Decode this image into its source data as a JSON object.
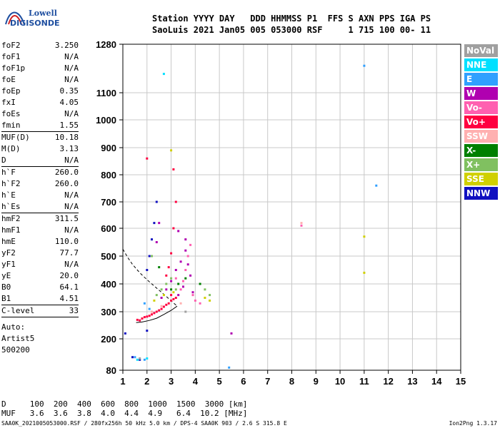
{
  "logo": {
    "line1": "Lowell",
    "line2": "DIGISONDE"
  },
  "header": {
    "labels": "Station YYYY DAY   DDD HHMMSS P1  FFS S AXN PPS IGA PS",
    "values": "SaoLuis 2021 Jan05 005 053000 RSF     1 715 100 00- 11"
  },
  "params": [
    {
      "label": "foF2",
      "value": "3.250"
    },
    {
      "label": "foF1",
      "value": "N/A"
    },
    {
      "label": "foF1p",
      "value": "N/A"
    },
    {
      "label": "foE",
      "value": "N/A"
    },
    {
      "label": "foEp",
      "value": "0.35"
    },
    {
      "label": "fxI",
      "value": "4.05"
    },
    {
      "label": "foEs",
      "value": "N/A"
    },
    {
      "label": "fmin",
      "value": "1.55"
    },
    {
      "label": "MUF(D)",
      "value": "10.18",
      "sep": true
    },
    {
      "label": "M(D)",
      "value": "3.13"
    },
    {
      "label": "D",
      "value": "N/A"
    },
    {
      "label": "h`F",
      "value": "260.0",
      "sep": true
    },
    {
      "label": "h`F2",
      "value": "260.0"
    },
    {
      "label": "h`E",
      "value": "N/A"
    },
    {
      "label": "h`Es",
      "value": "N/A"
    },
    {
      "label": "hmF2",
      "value": "311.5",
      "sep": true
    },
    {
      "label": "hmF1",
      "value": "N/A"
    },
    {
      "label": "hmE",
      "value": "110.0"
    },
    {
      "label": "yF2",
      "value": "77.7"
    },
    {
      "label": "yF1",
      "value": "N/A"
    },
    {
      "label": "yE",
      "value": "20.0"
    },
    {
      "label": "B0",
      "value": "64.1"
    },
    {
      "label": "B1",
      "value": "4.51"
    },
    {
      "label": "C-level",
      "value": "33",
      "sep": true
    }
  ],
  "auto": {
    "line1": "Auto:",
    "line2": "Artist5",
    "line3": "500200"
  },
  "legend": [
    {
      "label": "NoVal",
      "color": "#a0a0a0"
    },
    {
      "label": "NNE",
      "color": "#00e0ff"
    },
    {
      "label": "E",
      "color": "#30a0ff"
    },
    {
      "label": "W",
      "color": "#b000b0"
    },
    {
      "label": "Vo-",
      "color": "#ff60b0"
    },
    {
      "label": "Vo+",
      "color": "#ff0040"
    },
    {
      "label": "SSW",
      "color": "#ffb0b0"
    },
    {
      "label": "X-",
      "color": "#008000"
    },
    {
      "label": "X+",
      "color": "#80c060"
    },
    {
      "label": "SSE",
      "color": "#d0d000"
    },
    {
      "label": "NNW",
      "color": "#1010c0"
    }
  ],
  "footer": {
    "d_row": "D     100  200  400  600  800  1000  1500  3000 [km]",
    "muf_row": "MUF   3.6  3.6  3.8  4.0  4.4  4.9   6.4  10.2 [MHz]",
    "file": "SAA0K_2021005053000.RSF / 280fx256h 50 kHz 5.0 km / DPS-4 SAA0K 903 / 2.6 S 315.8 E",
    "version": "Ion2Png 1.3.17"
  },
  "chart_data": {
    "type": "scatter",
    "xlim": [
      1,
      15
    ],
    "ylim": [
      80,
      1280
    ],
    "x_ticks": [
      "1",
      "2",
      "3",
      "4",
      "5",
      "6",
      "7",
      "8",
      "9",
      "10",
      "11",
      "12",
      "13",
      "14",
      "15"
    ],
    "y_ticks": [
      "80",
      "200",
      "300",
      "400",
      "500",
      "600",
      "700",
      "800",
      "900",
      "1000",
      "1100",
      "1280"
    ],
    "y_tick_values": [
      80,
      200,
      300,
      400,
      500,
      600,
      700,
      800,
      900,
      1000,
      1100,
      1280
    ],
    "grid": true,
    "series": [
      {
        "name": "Vo+",
        "color": "#ff0040",
        "points": [
          [
            1.6,
            270
          ],
          [
            1.7,
            268
          ],
          [
            1.8,
            275
          ],
          [
            1.9,
            280
          ],
          [
            2.0,
            282
          ],
          [
            2.1,
            285
          ],
          [
            2.2,
            290
          ],
          [
            2.3,
            295
          ],
          [
            2.4,
            300
          ],
          [
            2.5,
            305
          ],
          [
            2.6,
            310
          ],
          [
            2.7,
            318
          ],
          [
            2.8,
            325
          ],
          [
            2.9,
            330
          ],
          [
            3.0,
            340
          ],
          [
            3.1,
            345
          ],
          [
            3.2,
            350
          ],
          [
            3.0,
            360
          ],
          [
            2.8,
            430
          ],
          [
            2.9,
            460
          ],
          [
            3.0,
            510
          ],
          [
            3.1,
            600
          ],
          [
            3.2,
            700
          ],
          [
            3.1,
            820
          ],
          [
            2.0,
            860
          ]
        ]
      },
      {
        "name": "W",
        "color": "#b000b0",
        "points": [
          [
            2.6,
            350
          ],
          [
            2.8,
            380
          ],
          [
            3.0,
            410
          ],
          [
            3.2,
            450
          ],
          [
            3.4,
            480
          ],
          [
            3.6,
            520
          ],
          [
            3.7,
            470
          ],
          [
            3.8,
            430
          ],
          [
            3.5,
            390
          ],
          [
            3.3,
            360
          ],
          [
            3.9,
            370
          ],
          [
            3.6,
            560
          ],
          [
            3.3,
            590
          ],
          [
            2.5,
            620
          ],
          [
            2.4,
            550
          ],
          [
            5.5,
            220
          ]
        ]
      },
      {
        "name": "Vo-",
        "color": "#ff60b0",
        "points": [
          [
            3.5,
            410
          ],
          [
            3.6,
            450
          ],
          [
            3.7,
            500
          ],
          [
            3.8,
            540
          ],
          [
            3.4,
            380
          ],
          [
            3.9,
            360
          ],
          [
            4.0,
            340
          ],
          [
            4.2,
            330
          ],
          [
            3.2,
            420
          ],
          [
            8.4,
            610
          ]
        ]
      },
      {
        "name": "X+",
        "color": "#80c060",
        "points": [
          [
            2.4,
            360
          ],
          [
            2.6,
            380
          ],
          [
            2.8,
            400
          ],
          [
            3.0,
            420
          ],
          [
            3.2,
            380
          ],
          [
            4.4,
            380
          ],
          [
            4.6,
            360
          ],
          [
            2.2,
            500
          ]
        ]
      },
      {
        "name": "X-",
        "color": "#008000",
        "points": [
          [
            3.0,
            380
          ],
          [
            3.3,
            400
          ],
          [
            3.6,
            420
          ],
          [
            4.2,
            400
          ],
          [
            2.5,
            460
          ]
        ]
      },
      {
        "name": "SSE",
        "color": "#d0d000",
        "points": [
          [
            2.3,
            340
          ],
          [
            2.7,
            360
          ],
          [
            3.1,
            370
          ],
          [
            4.4,
            350
          ],
          [
            4.6,
            340
          ],
          [
            3.0,
            890
          ],
          [
            11.0,
            570
          ],
          [
            11.0,
            440
          ]
        ]
      },
      {
        "name": "NNW",
        "color": "#1010c0",
        "points": [
          [
            2.0,
            450
          ],
          [
            2.1,
            500
          ],
          [
            2.2,
            560
          ],
          [
            2.3,
            620
          ],
          [
            2.4,
            700
          ],
          [
            2.0,
            230
          ],
          [
            1.1,
            220
          ],
          [
            1.4,
            130
          ],
          [
            1.7,
            120
          ]
        ]
      },
      {
        "name": "E",
        "color": "#30a0ff",
        "points": [
          [
            1.9,
            330
          ],
          [
            2.1,
            310
          ],
          [
            1.5,
            130
          ],
          [
            1.9,
            120
          ],
          [
            11.0,
            1200
          ],
          [
            11.5,
            760
          ],
          [
            5.4,
            90
          ]
        ]
      },
      {
        "name": "NNE",
        "color": "#00e0ff",
        "points": [
          [
            2.7,
            1170
          ],
          [
            1.6,
            120
          ],
          [
            2.0,
            125
          ]
        ]
      },
      {
        "name": "SSW",
        "color": "#ffb0b0",
        "points": [
          [
            2.2,
            300
          ],
          [
            2.6,
            320
          ],
          [
            3.4,
            330
          ],
          [
            8.4,
            620
          ]
        ]
      },
      {
        "name": "NoVal",
        "color": "#a0a0a0",
        "points": [
          [
            1.7,
            125
          ],
          [
            3.6,
            300
          ]
        ]
      }
    ],
    "profile_curve": [
      [
        1.55,
        260
      ],
      [
        1.8,
        262
      ],
      [
        2.1,
        268
      ],
      [
        2.4,
        276
      ],
      [
        2.7,
        290
      ],
      [
        3.0,
        305
      ],
      [
        3.25,
        320
      ]
    ],
    "extrapolation_curve": [
      [
        1.0,
        525
      ],
      [
        1.2,
        495
      ],
      [
        1.4,
        470
      ],
      [
        1.7,
        440
      ],
      [
        2.0,
        415
      ],
      [
        2.4,
        385
      ],
      [
        2.8,
        355
      ],
      [
        3.25,
        320
      ]
    ]
  }
}
